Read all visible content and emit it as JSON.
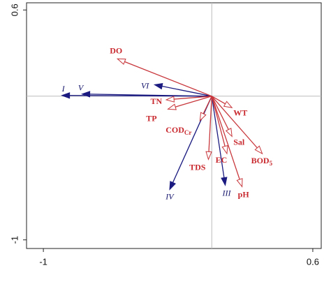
{
  "chart_data": {
    "type": "biplot",
    "xlim": [
      -1.1,
      0.65
    ],
    "ylim": [
      -1.06,
      0.65
    ],
    "xticks": [
      -1.0,
      0.6
    ],
    "yticks": [
      0.6,
      -1.0
    ],
    "vectors": [
      {
        "label": "I",
        "x": -0.89,
        "y": 0.005,
        "color": "#1a1a80"
      },
      {
        "label": "V",
        "x": -0.77,
        "y": 0.015,
        "color": "#1a1a80"
      },
      {
        "label": "VI",
        "x": -0.34,
        "y": 0.08,
        "color": "#1a1a80"
      },
      {
        "label": "IV",
        "x": -0.25,
        "y": -0.65,
        "color": "#1a1a80"
      },
      {
        "label": "III",
        "x": 0.08,
        "y": -0.62,
        "color": "#1a1a80"
      },
      {
        "label": "DO",
        "x": -0.56,
        "y": 0.26,
        "color": "#c8373c"
      },
      {
        "label": "TN",
        "x": -0.27,
        "y": -0.025,
        "color": "#c8373c"
      },
      {
        "label": "TP",
        "x": -0.26,
        "y": -0.09,
        "color": "#c8373c"
      },
      {
        "label": "COD",
        "sub": "Cr",
        "x": -0.07,
        "y": -0.17,
        "color": "#c8373c"
      },
      {
        "label": "TDS",
        "x": -0.02,
        "y": -0.44,
        "color": "#c8373c"
      },
      {
        "label": "EC",
        "x": 0.09,
        "y": -0.4,
        "color": "#c8373c"
      },
      {
        "label": "pH",
        "x": 0.18,
        "y": -0.63,
        "color": "#c8373c"
      },
      {
        "label": "Sal",
        "x": 0.12,
        "y": -0.28,
        "color": "#c8373c"
      },
      {
        "label": "BOD",
        "sub": "5",
        "x": 0.3,
        "y": -0.4,
        "color": "#c8373c"
      },
      {
        "label": "WT",
        "x": 0.12,
        "y": -0.08,
        "color": "#c8373c"
      }
    ]
  }
}
